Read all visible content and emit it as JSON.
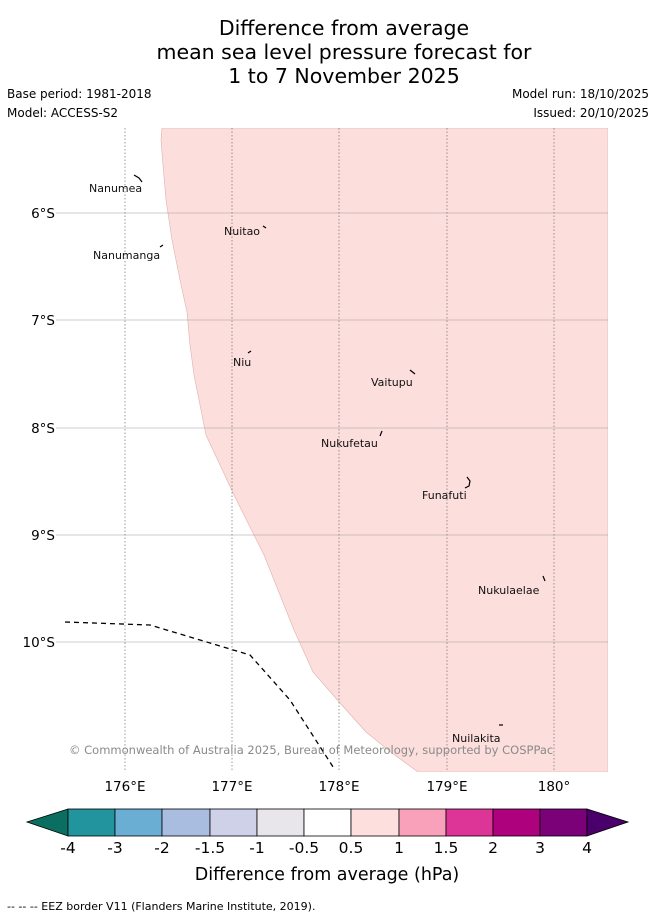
{
  "title": {
    "line1": "Difference from average",
    "line2": "mean sea level pressure forecast for",
    "line3": "1 to 7 November 2025"
  },
  "base_period": "Base period: 1981-2018",
  "model": "Model: ACCESS-S2",
  "model_run": "Model run: 18/10/2025",
  "issued": "Issued: 20/10/2025",
  "map": {
    "latitude_labels": [
      "6°S",
      "7°S",
      "8°S",
      "9°S",
      "10°S"
    ],
    "longitude_labels": [
      "176°E",
      "177°E",
      "178°E",
      "179°E",
      "180°"
    ],
    "places": [
      "Nanumea",
      "Nuitao",
      "Nanumanga",
      "Niu",
      "Vaitupu",
      "Nukufetau",
      "Funafuti",
      "Nukulaelae",
      "Nuilakita"
    ],
    "shaded_category": "0.5 to 1",
    "shaded_color": "#fcdedc",
    "copyright": "© Commonwealth of Australia 2025, Bureau of Meteorology, supported by COSPPac"
  },
  "colorbar": {
    "ticks": [
      "-4",
      "-3",
      "-2",
      "-1.5",
      "-1",
      "-0.5",
      "0.5",
      "1",
      "1.5",
      "2",
      "3",
      "4"
    ],
    "colors": [
      "#0a6e60",
      "#21949e",
      "#6aaed4",
      "#a9bde0",
      "#cfd1e8",
      "#e8e6ea",
      "#ffffff",
      "#fde0de",
      "#f9a1bb",
      "#dd3497",
      "#ae017e",
      "#7a0177",
      "#49006a"
    ],
    "label": "Difference from average (hPa)"
  },
  "eez_legend": "-- -- -- EEZ border V11 (Flanders Marine Institute, 2019)."
}
